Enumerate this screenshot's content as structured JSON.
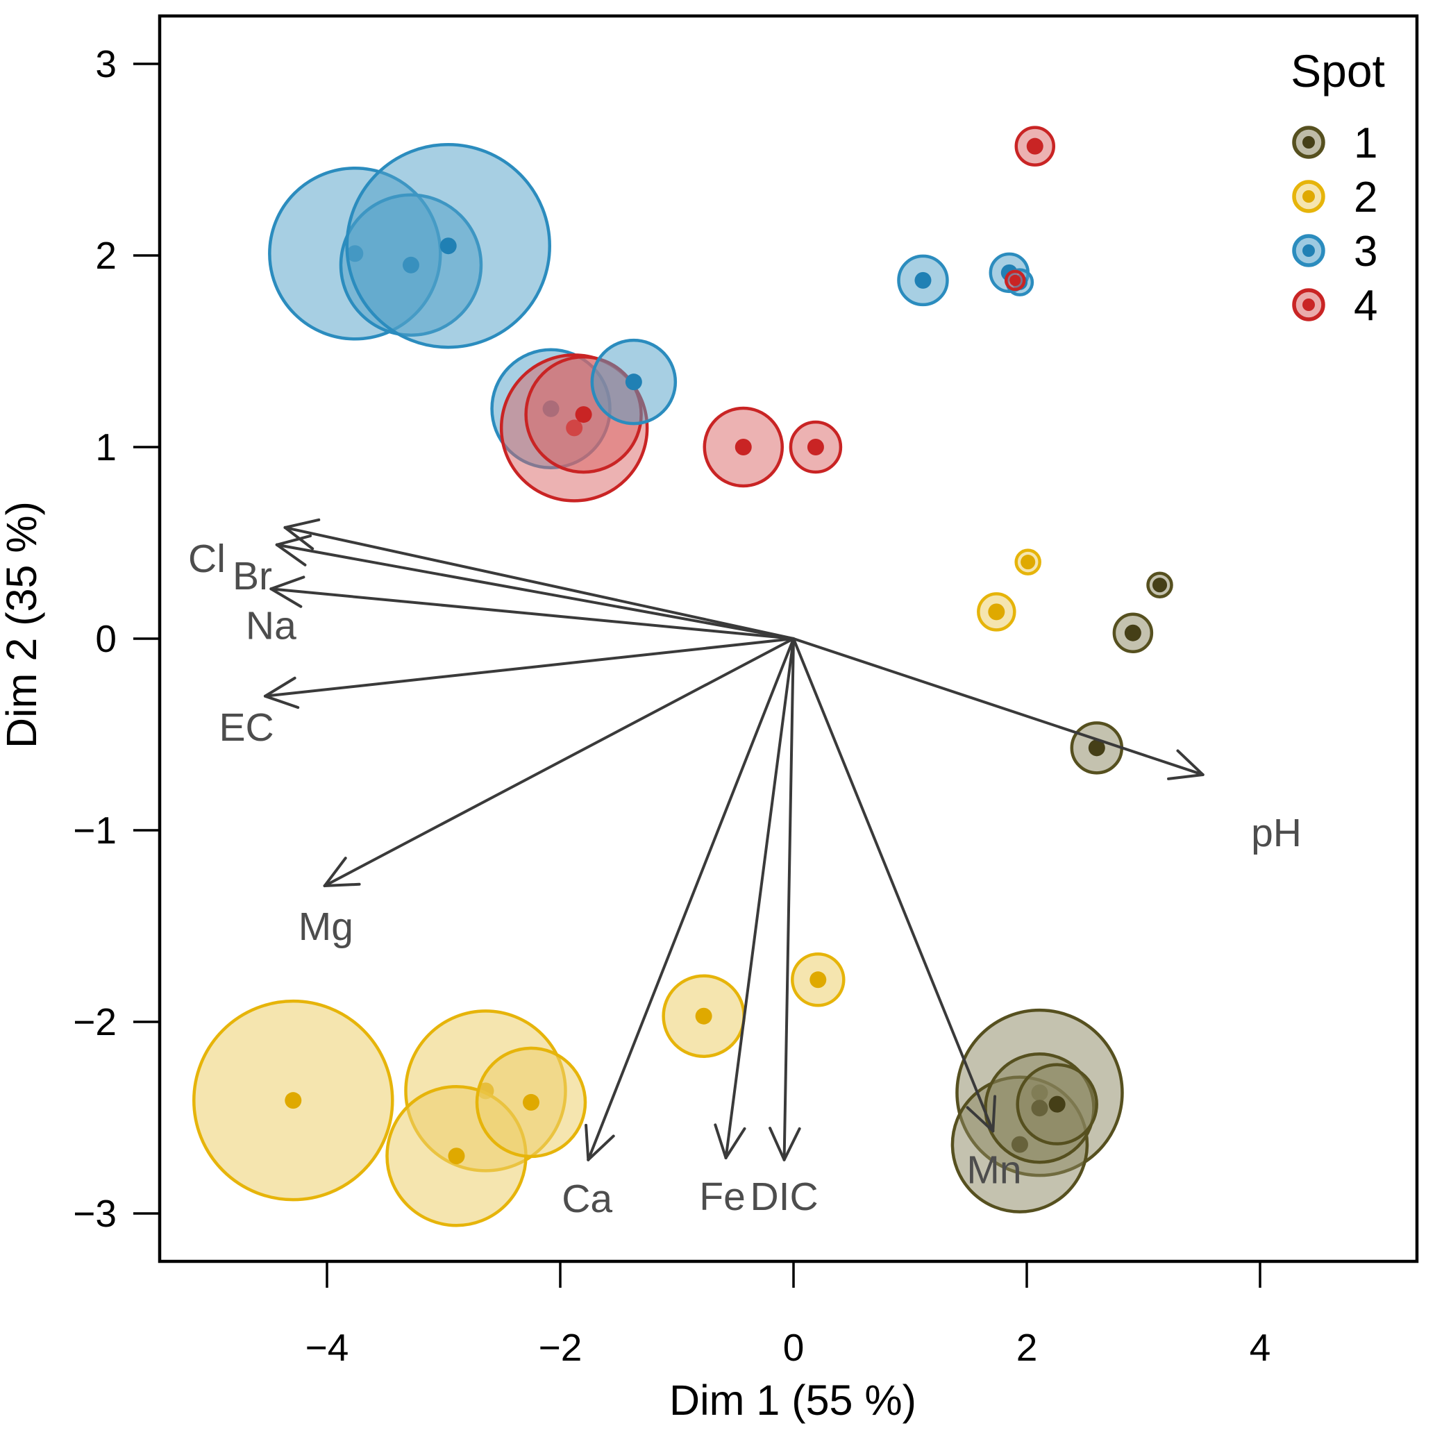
{
  "axes": {
    "x_label": "Dim 1 (55 %)",
    "y_label": "Dim 2 (35 %)"
  },
  "legend": {
    "title": "Spot",
    "items": [
      {
        "label": "1",
        "spot": 1
      },
      {
        "label": "2",
        "spot": 2
      },
      {
        "label": "3",
        "spot": 3
      },
      {
        "label": "4",
        "spot": 4
      }
    ]
  },
  "chart_data": {
    "type": "scatter",
    "subtype": "bubble-biplot",
    "title": "",
    "xlabel": "Dim 1 (55 %)",
    "ylabel": "Dim 2 (35 %)",
    "xlim": [
      -5.43,
      5.35
    ],
    "ylim": [
      -3.25,
      3.25
    ],
    "x_ticks": [
      -4,
      -2,
      0,
      2,
      4
    ],
    "y_ticks": [
      3,
      2,
      1,
      0,
      -1,
      -2,
      -3
    ],
    "grid": false,
    "legend_position": "top-right-inside",
    "series": [
      {
        "id": 1,
        "name": "1",
        "stroke": "#56501f",
        "fill": "#8a8560",
        "fill_opacity": 0.5,
        "dot": "#453f17"
      },
      {
        "id": 2,
        "name": "2",
        "stroke": "#e6b40a",
        "fill": "#edd06e",
        "fill_opacity": 0.55,
        "dot": "#dfa900"
      },
      {
        "id": 3,
        "name": "3",
        "stroke": "#2b8cbe",
        "fill": "#4f9fc8",
        "fill_opacity": 0.5,
        "dot": "#2080b4"
      },
      {
        "id": 4,
        "name": "4",
        "stroke": "#c92424",
        "fill": "#d96666",
        "fill_opacity": 0.5,
        "dot": "#c92424"
      }
    ],
    "points": [
      {
        "spot": 3,
        "x": -3.76,
        "y": 2.01,
        "r": 123
      },
      {
        "spot": 3,
        "x": -3.28,
        "y": 1.95,
        "r": 101
      },
      {
        "spot": 3,
        "x": -2.96,
        "y": 2.05,
        "r": 146
      },
      {
        "spot": 3,
        "x": -2.08,
        "y": 1.2,
        "r": 85
      },
      {
        "spot": 4,
        "x": -1.88,
        "y": 1.1,
        "r": 105
      },
      {
        "spot": 4,
        "x": -1.8,
        "y": 1.17,
        "r": 83
      },
      {
        "spot": 3,
        "x": -1.37,
        "y": 1.34,
        "r": 60
      },
      {
        "spot": 4,
        "x": -0.43,
        "y": 1.0,
        "r": 56
      },
      {
        "spot": 4,
        "x": 0.19,
        "y": 1.0,
        "r": 36
      },
      {
        "spot": 4,
        "x": 2.07,
        "y": 2.57,
        "r": 27
      },
      {
        "spot": 3,
        "x": 1.11,
        "y": 1.87,
        "r": 35
      },
      {
        "spot": 3,
        "x": 1.85,
        "y": 1.91,
        "r": 27
      },
      {
        "spot": 3,
        "x": 1.94,
        "y": 1.86,
        "r": 18
      },
      {
        "spot": 4,
        "x": 1.9,
        "y": 1.87,
        "r": 13
      },
      {
        "spot": 2,
        "x": -4.29,
        "y": -2.41,
        "r": 143
      },
      {
        "spot": 2,
        "x": -2.64,
        "y": -2.36,
        "r": 115
      },
      {
        "spot": 2,
        "x": -2.89,
        "y": -2.7,
        "r": 100
      },
      {
        "spot": 2,
        "x": -2.25,
        "y": -2.42,
        "r": 78
      },
      {
        "spot": 2,
        "x": -0.77,
        "y": -1.97,
        "r": 58
      },
      {
        "spot": 2,
        "x": 0.21,
        "y": -1.78,
        "r": 37
      },
      {
        "spot": 2,
        "x": 1.74,
        "y": 0.14,
        "r": 26
      },
      {
        "spot": 2,
        "x": 2.01,
        "y": 0.4,
        "r": 17
      },
      {
        "spot": 1,
        "x": 2.11,
        "y": -2.37,
        "r": 119
      },
      {
        "spot": 1,
        "x": 1.94,
        "y": -2.64,
        "r": 97
      },
      {
        "spot": 1,
        "x": 2.11,
        "y": -2.45,
        "r": 78
      },
      {
        "spot": 1,
        "x": 2.26,
        "y": -2.43,
        "r": 57
      },
      {
        "spot": 1,
        "x": 2.6,
        "y": -0.57,
        "r": 36
      },
      {
        "spot": 1,
        "x": 2.91,
        "y": 0.03,
        "r": 27
      },
      {
        "spot": 1,
        "x": 3.14,
        "y": 0.28,
        "r": 17
      }
    ],
    "arrows": [
      {
        "label": "Cl",
        "x": -4.36,
        "y": 0.58,
        "label_x": -5.03,
        "label_y": 0.42
      },
      {
        "label": "Br",
        "x": -4.43,
        "y": 0.49,
        "label_x": -4.64,
        "label_y": 0.33
      },
      {
        "label": "Na",
        "x": -4.48,
        "y": 0.26,
        "label_x": -4.48,
        "label_y": 0.07
      },
      {
        "label": "EC",
        "x": -4.53,
        "y": -0.3,
        "label_x": -4.69,
        "label_y": -0.46
      },
      {
        "label": "Mg",
        "x": -4.02,
        "y": -1.29,
        "label_x": -4.01,
        "label_y": -1.5
      },
      {
        "label": "Ca",
        "x": -1.76,
        "y": -2.72,
        "label_x": -1.77,
        "label_y": -2.92
      },
      {
        "label": "Fe",
        "x": -0.58,
        "y": -2.71,
        "label_x": -0.61,
        "label_y": -2.91
      },
      {
        "label": "DIC",
        "x": -0.08,
        "y": -2.72,
        "label_x": -0.08,
        "label_y": -2.91
      },
      {
        "label": "Mn",
        "x": 1.71,
        "y": -2.57,
        "label_x": 1.72,
        "label_y": -2.77
      },
      {
        "label": "pH",
        "x": 3.51,
        "y": -0.71,
        "label_x": 4.14,
        "label_y": -1.01
      }
    ],
    "arrow_origin": {
      "x": 0,
      "y": 0
    },
    "colors": {
      "arrow": "#3a3a3a",
      "variable_label": "#4d4d4d",
      "frame": "#000000"
    }
  }
}
